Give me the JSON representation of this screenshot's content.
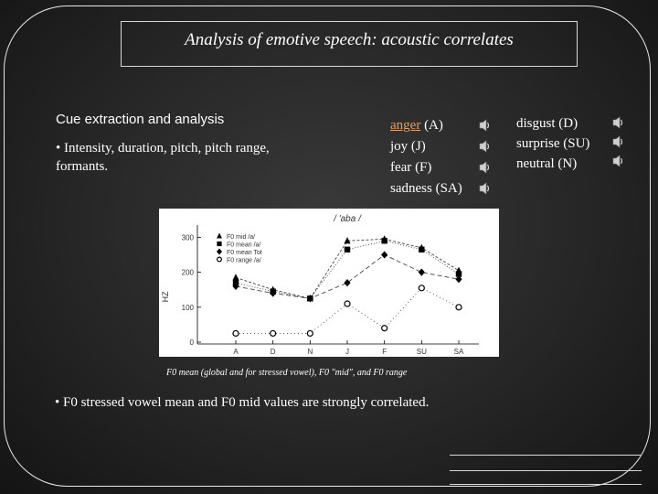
{
  "slide": {
    "title": "Analysis of emotive speech: acoustic correlates",
    "cue_heading": "Cue extraction and analysis",
    "bullet_features": "• Intensity, duration, pitch, pitch range, formants.",
    "emotions_col1": [
      {
        "name": "anger",
        "code": "(A)"
      },
      {
        "name": "joy",
        "code": "(J)"
      },
      {
        "name": "fear",
        "code": "(F)"
      },
      {
        "name": "sadness",
        "code": "(SA)"
      }
    ],
    "emotions_col2": [
      {
        "name": "disgust",
        "code": "(D)"
      },
      {
        "name": "surprise",
        "code": "(SU)"
      },
      {
        "name": "neutral",
        "code": "(N)"
      }
    ],
    "chart_caption": "F0 mean (global and for stressed vowel), F0 \"mid\", and F0 range",
    "bullet_conclusion": "• F0 stressed vowel mean and F0 mid values are strongly correlated."
  },
  "icons": {
    "audio": "speaker-icon"
  },
  "colors": {
    "background": "#262626",
    "text": "#ffffff",
    "anger_link": "#e0a060"
  },
  "chart_data": {
    "type": "line",
    "title": "/ 'aba /",
    "ylabel": "HZ",
    "xlabel": "",
    "categories": [
      "A",
      "D",
      "N",
      "J",
      "F",
      "SU",
      "SA"
    ],
    "yticks": [
      0,
      100,
      200,
      300
    ],
    "ylim": [
      0,
      330
    ],
    "grid": false,
    "legend_position": "top-left",
    "series": [
      {
        "name": "F0 mid /a/",
        "marker": "triangle",
        "values": [
          185,
          150,
          125,
          290,
          295,
          270,
          205
        ]
      },
      {
        "name": "F0 mean /a/",
        "marker": "square",
        "values": [
          170,
          145,
          125,
          265,
          290,
          265,
          195
        ]
      },
      {
        "name": "F0 mean Tot",
        "marker": "diamond",
        "values": [
          160,
          140,
          125,
          170,
          250,
          200,
          180
        ]
      },
      {
        "name": "F0 range /a/",
        "marker": "circle",
        "values": [
          25,
          25,
          25,
          110,
          40,
          155,
          100
        ]
      }
    ]
  }
}
